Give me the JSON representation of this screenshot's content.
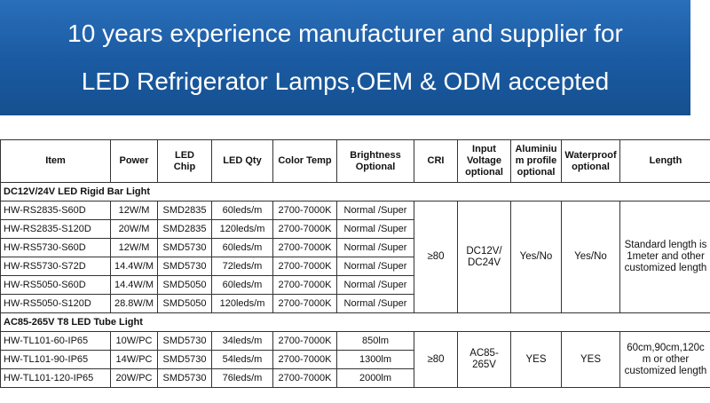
{
  "banner": {
    "lines": [
      "10 years experience manufacturer and supplier for",
      "LED Refrigerator Lamps,OEM & ODM accepted"
    ]
  },
  "table": {
    "headers": [
      "Item",
      "Power",
      "LED\nChip",
      "LED Qty",
      "Color Temp",
      "Brightness\nOptional",
      "CRI",
      "Input\nVoltage\noptional",
      "Aluminiu\nm profile\noptional",
      "Waterproof\noptional",
      "Length"
    ],
    "sections": [
      {
        "title": "DC12V/24V LED Rigid Bar Light",
        "rows": [
          [
            "HW-RS2835-S60D",
            "12W/M",
            "SMD2835",
            "60leds/m",
            "2700-7000K",
            "Normal /Super"
          ],
          [
            "HW-RS2835-S120D",
            "20W/M",
            "SMD2835",
            "120leds/m",
            "2700-7000K",
            "Normal /Super"
          ],
          [
            "HW-RS5730-S60D",
            "12W/M",
            "SMD5730",
            "60leds/m",
            "2700-7000K",
            "Normal /Super"
          ],
          [
            "HW-RS5730-S72D",
            "14.4W/M",
            "SMD5730",
            "72leds/m",
            "2700-7000K",
            "Normal /Super"
          ],
          [
            "HW-RS5050-S60D",
            "14.4W/M",
            "SMD5050",
            "60leds/m",
            "2700-7000K",
            "Normal /Super"
          ],
          [
            "HW-RS5050-S120D",
            "28.8W/M",
            "SMD5050",
            "120leds/m",
            "2700-7000K",
            "Normal /Super"
          ]
        ],
        "merged": [
          "≥80",
          "DC12V/\nDC24V",
          "Yes/No",
          "Yes/No",
          "Standard length is\n1meter and other\ncustomized length"
        ]
      },
      {
        "title": "AC85-265V T8 LED Tube Light",
        "rows": [
          [
            "HW-TL101-60-IP65",
            "10W/PC",
            "SMD5730",
            "34leds/m",
            "2700-7000K",
            "850lm"
          ],
          [
            "HW-TL101-90-IP65",
            "14W/PC",
            "SMD5730",
            "54leds/m",
            "2700-7000K",
            "1300lm"
          ],
          [
            "HW-TL101-120-IP65",
            "20W/PC",
            "SMD5730",
            "76leds/m",
            "2700-7000K",
            "2000lm"
          ]
        ],
        "merged": [
          "≥80",
          "AC85-\n265V",
          "YES",
          "YES",
          "60cm,90cm,120c\nm or other\ncustomized length"
        ]
      }
    ]
  }
}
